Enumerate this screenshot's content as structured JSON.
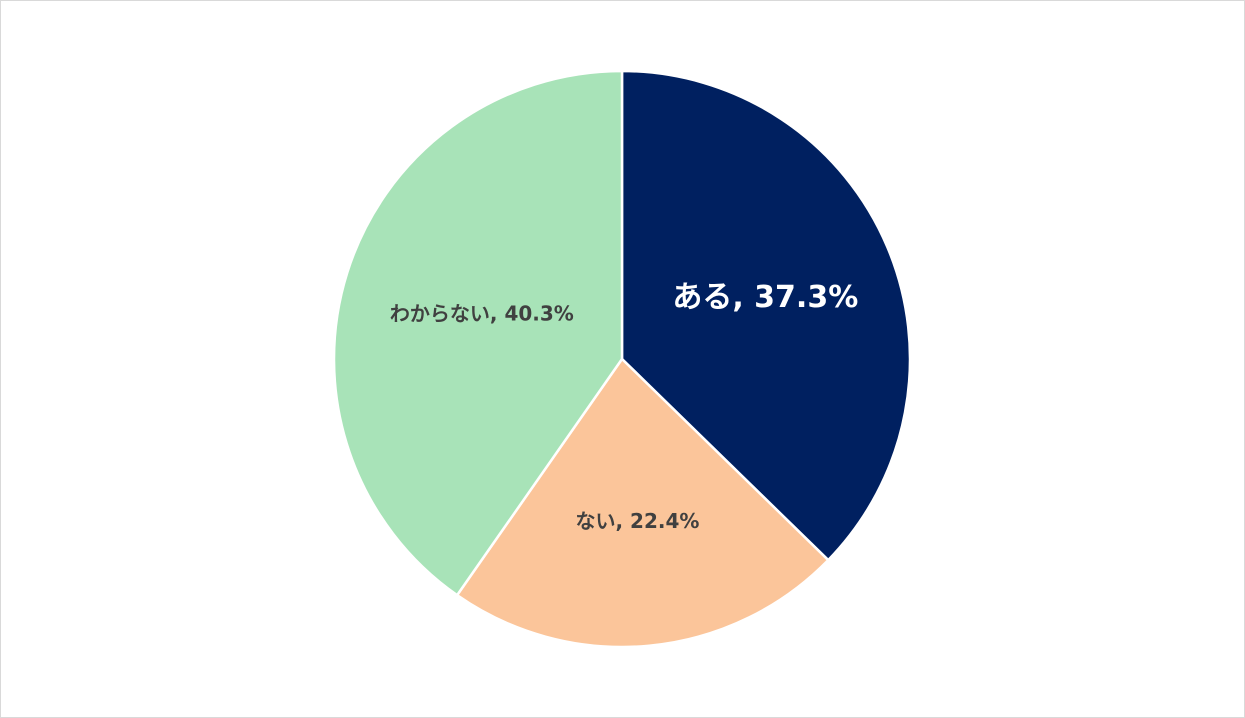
{
  "chart_data": {
    "type": "pie",
    "values": [
      37.3,
      22.4,
      40.3
    ],
    "value_labels": [
      "ある, 37.3%",
      "ない, 22.4%",
      "わからない, 40.3%"
    ],
    "colors": [
      "#002060",
      "#FBC59A",
      "#A8E3B8"
    ]
  }
}
